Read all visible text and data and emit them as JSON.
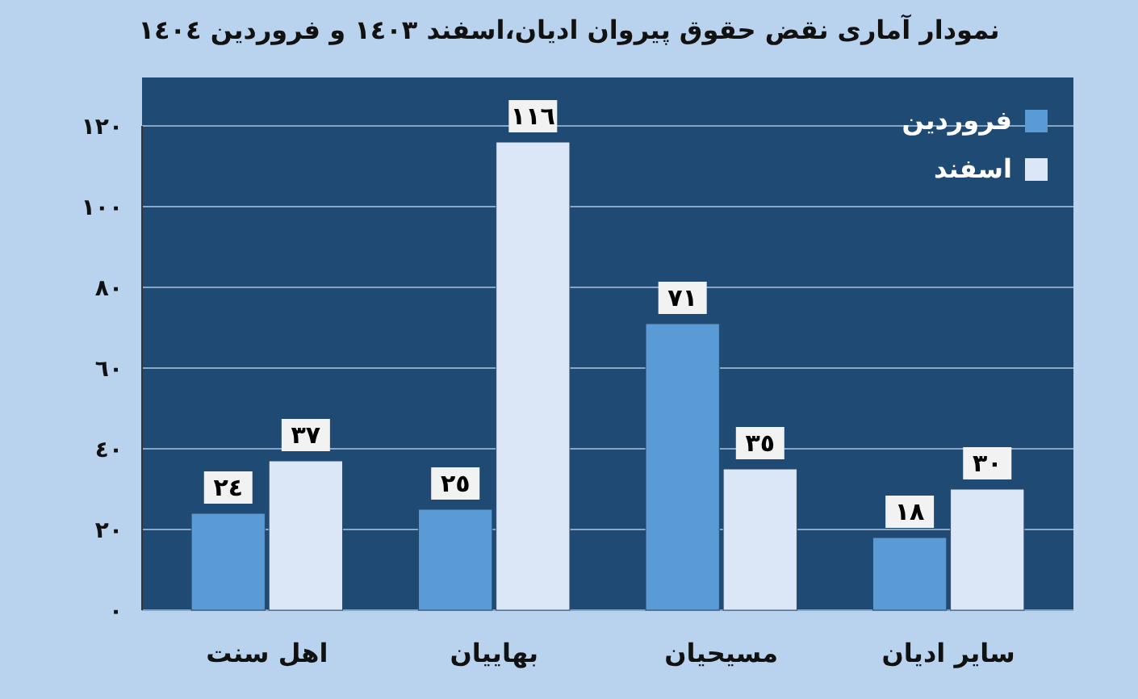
{
  "chart_data": {
    "type": "bar",
    "title": "نمودار آماری نقض حقوق پیروان ادیان،اسفند ١٤٠٣ و فروردین ١٤٠٤",
    "categories": [
      "اهل سنت",
      "بهاییان",
      "مسیحیان",
      "سایر ادیان"
    ],
    "series": [
      {
        "name": "فروردین",
        "color": "#5b9bd5",
        "values": [
          24,
          25,
          71,
          18
        ],
        "value_labels": [
          "٢٤",
          "٢٥",
          "٧١",
          "١٨"
        ]
      },
      {
        "name": "اسفند",
        "color": "#dbe7f6",
        "values": [
          37,
          116,
          35,
          30
        ],
        "value_labels": [
          "٣٧",
          "١١٦",
          "٣٥",
          "٣٠"
        ]
      }
    ],
    "ylim": [
      0,
      120
    ],
    "yticks": [
      {
        "value": 0,
        "label": "٠"
      },
      {
        "value": 20,
        "label": "٢٠"
      },
      {
        "value": 40,
        "label": "٤٠"
      },
      {
        "value": 60,
        "label": "٦٠"
      },
      {
        "value": 80,
        "label": "٨٠"
      },
      {
        "value": 100,
        "label": "١٠٠"
      },
      {
        "value": 120,
        "label": "١٢٠"
      }
    ],
    "grid": "y",
    "legend": "top right"
  }
}
